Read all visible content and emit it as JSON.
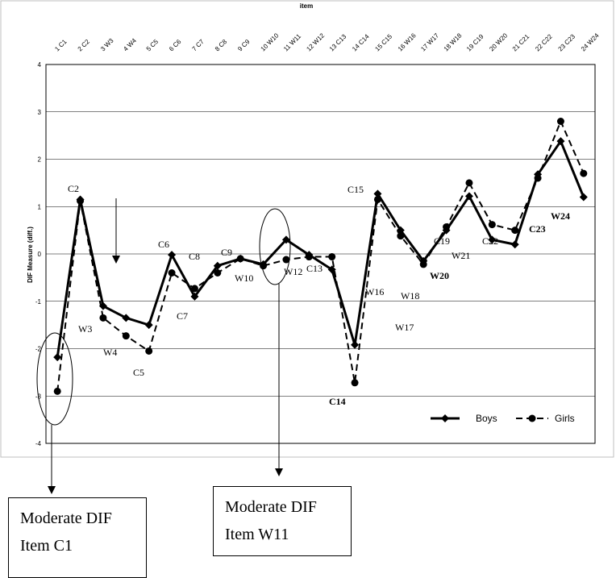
{
  "chart_data": {
    "type": "line",
    "title": "",
    "xlabel": "item",
    "ylabel": "DIF Measure (diff.)",
    "categories": [
      "1 C1",
      "2 C2",
      "3 W3",
      "4 W4",
      "5 C5",
      "6 C6",
      "7 C7",
      "8 C8",
      "9 C9",
      "10 W10",
      "11 W11",
      "12 W12",
      "13 C13",
      "14 C14",
      "15 C15",
      "16 W16",
      "17 W17",
      "18 W18",
      "19 C19",
      "20 W20",
      "21 C21",
      "22 C22",
      "23 C23",
      "24 W24"
    ],
    "ylim": [
      -4,
      4
    ],
    "yticks": [
      "4",
      "3",
      "2",
      "1",
      "0",
      "-1",
      "-2",
      "-3",
      "-4"
    ],
    "grid": true,
    "legend": "bottom-right",
    "series": [
      {
        "name": "Boys",
        "style": "solid",
        "marker": "diamond",
        "values": [
          -2.18,
          1.15,
          -1.1,
          -1.35,
          -1.5,
          -0.02,
          -0.9,
          -0.25,
          -0.1,
          -0.22,
          0.3,
          -0.02,
          -0.33,
          -1.92,
          1.27,
          0.5,
          -0.15,
          0.5,
          1.22,
          0.3,
          0.2,
          1.68,
          2.38,
          1.2
        ]
      },
      {
        "name": "Girls",
        "style": "dashed",
        "marker": "circle",
        "values": [
          -2.9,
          1.12,
          -1.35,
          -1.73,
          -2.05,
          -0.4,
          -0.73,
          -0.4,
          -0.1,
          -0.25,
          -0.12,
          -0.06,
          -0.06,
          -2.72,
          1.15,
          0.38,
          -0.22,
          0.57,
          1.5,
          0.62,
          0.5,
          1.6,
          2.8,
          1.7
        ]
      }
    ],
    "annotations": [
      {
        "text": "C2",
        "bold": false
      },
      {
        "text": "W3",
        "bold": false
      },
      {
        "text": "W4",
        "bold": false
      },
      {
        "text": "C5",
        "bold": false
      },
      {
        "text": "C6",
        "bold": false
      },
      {
        "text": "C7",
        "bold": false
      },
      {
        "text": "C8",
        "bold": false
      },
      {
        "text": "C9",
        "bold": false
      },
      {
        "text": "W10",
        "bold": false
      },
      {
        "text": "W12",
        "bold": false
      },
      {
        "text": "C13",
        "bold": false
      },
      {
        "text": "C14",
        "bold": true
      },
      {
        "text": "C15",
        "bold": false
      },
      {
        "text": "W16",
        "bold": false
      },
      {
        "text": "W17",
        "bold": false
      },
      {
        "text": "W18",
        "bold": false
      },
      {
        "text": "C19",
        "bold": false
      },
      {
        "text": "W20",
        "bold": true
      },
      {
        "text": "W21",
        "bold": false
      },
      {
        "text": "C22",
        "bold": false
      },
      {
        "text": "C23",
        "bold": true
      },
      {
        "text": "W24",
        "bold": true
      }
    ]
  },
  "callouts": [
    {
      "line1": "Moderate DIF",
      "line2": "Item C1"
    },
    {
      "line1": "Moderate DIF",
      "line2": "Item W11"
    }
  ]
}
